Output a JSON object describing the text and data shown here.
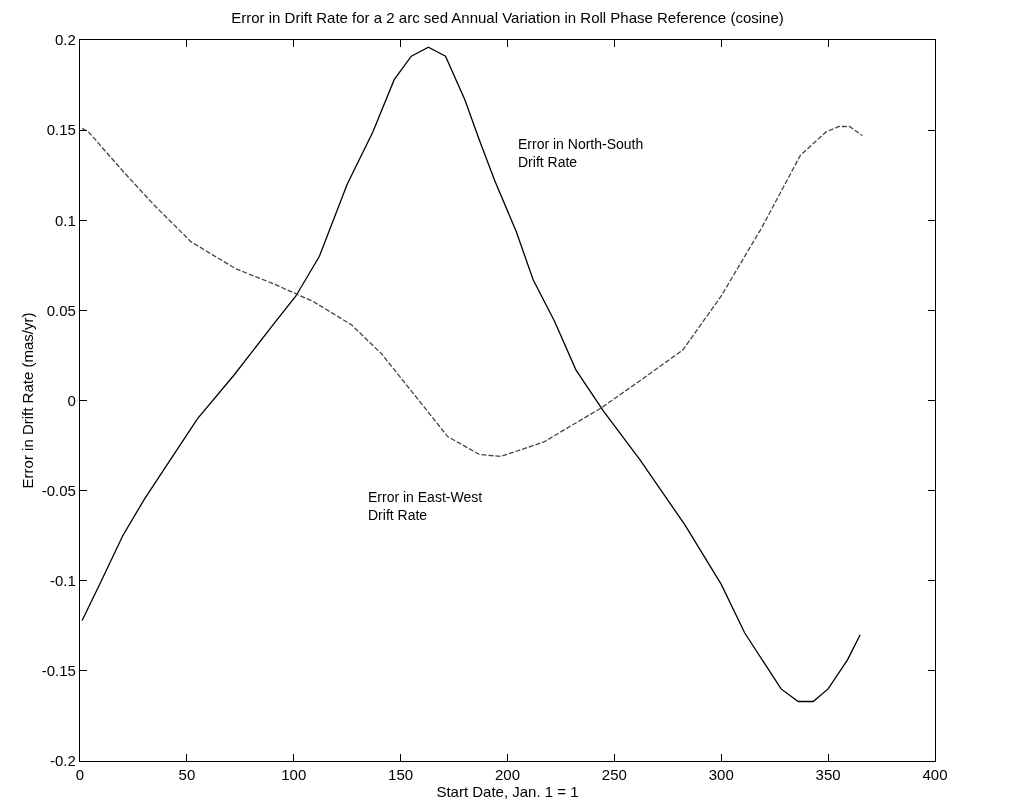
{
  "chart_data": {
    "type": "line",
    "title": "Error in Drift Rate for a 2 arc sed Annual Variation in Roll Phase Reference (cosine)",
    "xlabel": "Start Date, Jan. 1 = 1",
    "ylabel": "Error in Drift Rate (mas/yr)",
    "xlim": [
      0,
      400
    ],
    "xticks": [
      0,
      50,
      100,
      150,
      200,
      250,
      300,
      350,
      400
    ],
    "ylim": [
      -0.2,
      0.2
    ],
    "yticks": [
      -0.2,
      -0.15,
      -0.1,
      -0.05,
      0,
      0.05,
      0.1,
      0.15,
      0.2
    ],
    "series": [
      {
        "name": "Error in North-South\nDrift Rate",
        "color": "#000000",
        "line_style": "solid",
        "x": [
          1,
          10,
          20,
          30,
          40,
          55,
          72,
          89,
          101,
          112,
          125,
          137,
          147,
          155,
          163,
          171,
          180,
          187,
          194,
          204,
          212,
          222,
          232,
          245,
          262,
          283,
          300,
          311,
          328,
          336,
          343,
          350,
          359,
          365
        ],
        "values": [
          -0.122,
          -0.1,
          -0.075,
          -0.055,
          -0.037,
          -0.01,
          0.014,
          0.04,
          0.058,
          0.08,
          0.12,
          0.149,
          0.178,
          0.191,
          0.196,
          0.191,
          0.167,
          0.144,
          0.122,
          0.094,
          0.067,
          0.044,
          0.017,
          -0.006,
          -0.033,
          -0.069,
          -0.102,
          -0.129,
          -0.16,
          -0.167,
          -0.167,
          -0.16,
          -0.144,
          -0.13
        ]
      },
      {
        "name": "Error in East-West\nDrift Rate",
        "color": "#444444",
        "line_style": "dashed",
        "x": [
          1,
          4,
          21,
          35,
          52,
          73,
          90,
          109,
          127,
          141,
          166,
          172,
          187,
          197,
          217,
          244,
          262,
          282,
          300,
          319,
          337,
          349,
          355,
          360,
          366
        ],
        "values": [
          0.151,
          0.149,
          0.126,
          0.108,
          0.088,
          0.073,
          0.065,
          0.055,
          0.042,
          0.026,
          -0.011,
          -0.02,
          -0.03,
          -0.031,
          -0.023,
          -0.004,
          0.011,
          0.028,
          0.058,
          0.096,
          0.136,
          0.149,
          0.152,
          0.152,
          0.147
        ]
      }
    ]
  }
}
